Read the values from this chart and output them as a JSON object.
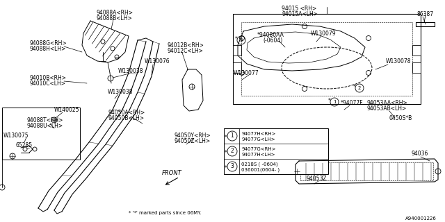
{
  "bg_color": "#ffffff",
  "line_color": "#000000",
  "text_color": "#000000",
  "fig_width": 6.4,
  "fig_height": 3.2,
  "dpi": 100,
  "labels": {
    "top_center_1": "94088A<RH>",
    "top_center_2": "94088B<LH>",
    "top_left_1": "94088G<RH>",
    "top_left_2": "94088H<LH>",
    "mid_left_1": "94010B<RH>",
    "mid_left_2": "94010C<LH>",
    "w130038_1": "W130038",
    "w130038_2": "W130038",
    "w130076": "W130076",
    "mid_center_1": "94012B<RH>",
    "mid_center_2": "94012C<LH>",
    "w140025": "W140025",
    "t_label_1": "94088T<RH>",
    "t_label_2": "94088U<LH>",
    "w130075": "W130075",
    "n65285": "65285",
    "a_label_1": "94050A<RH>",
    "a_label_2": "94050B<LH>",
    "y_label_1": "94050Y<RH>",
    "y_label_2": "94050Z<LH>",
    "top_right_1": "94015 <RH>",
    "top_right_2": "94015A<LH>",
    "n86387": "86387",
    "aa_label_1": "*94080AA",
    "aa_label_2": "(-0604)",
    "w130079": "W130079",
    "w130077": "W130077",
    "w130078": "W130078",
    "f_label": "*94077F",
    "ab_label_1": "94053AA<RH>",
    "ab_label_2": "94053AB<LH>",
    "n0450s": "0450S*B",
    "n94036": "94036",
    "n94053z": "94053Z",
    "front_arrow": "FRONT",
    "footnote": "* '*' marked parts since 06MY.",
    "diagram_id": "A940001226",
    "legend_1a": "94077H<RH>",
    "legend_1b": "94077G<LH>",
    "legend_2a": "94077G<RH>",
    "legend_2b": "94077H<LH>",
    "legend_3a": "0218S ( -0604)",
    "legend_3b": "036001(0604- )"
  }
}
